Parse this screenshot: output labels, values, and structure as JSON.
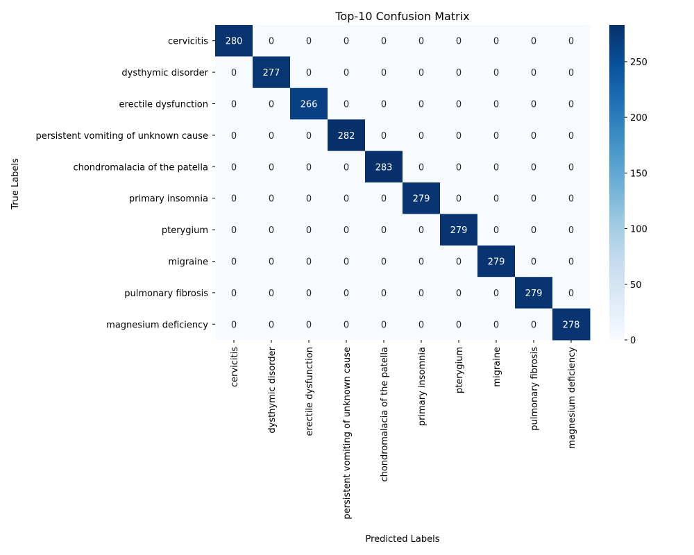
{
  "chart_data": {
    "type": "heatmap",
    "title": "Top-10 Confusion Matrix",
    "xlabel": "Predicted Labels",
    "ylabel": "True Labels",
    "x_categories": [
      "cervicitis",
      "dysthymic disorder",
      "erectile dysfunction",
      "persistent vomiting of unknown cause",
      "chondromalacia of the patella",
      "primary insomnia",
      "pterygium",
      "migraine",
      "pulmonary fibrosis",
      "magnesium deficiency"
    ],
    "y_categories": [
      "cervicitis",
      "dysthymic disorder",
      "erectile dysfunction",
      "persistent vomiting of unknown cause",
      "chondromalacia of the patella",
      "primary insomnia",
      "pterygium",
      "migraine",
      "pulmonary fibrosis",
      "magnesium deficiency"
    ],
    "values": [
      [
        280,
        0,
        0,
        0,
        0,
        0,
        0,
        0,
        0,
        0
      ],
      [
        0,
        277,
        0,
        0,
        0,
        0,
        0,
        0,
        0,
        0
      ],
      [
        0,
        0,
        266,
        0,
        0,
        0,
        0,
        0,
        0,
        0
      ],
      [
        0,
        0,
        0,
        282,
        0,
        0,
        0,
        0,
        0,
        0
      ],
      [
        0,
        0,
        0,
        0,
        283,
        0,
        0,
        0,
        0,
        0
      ],
      [
        0,
        0,
        0,
        0,
        0,
        279,
        0,
        0,
        0,
        0
      ],
      [
        0,
        0,
        0,
        0,
        0,
        0,
        279,
        0,
        0,
        0
      ],
      [
        0,
        0,
        0,
        0,
        0,
        0,
        0,
        279,
        0,
        0
      ],
      [
        0,
        0,
        0,
        0,
        0,
        0,
        0,
        0,
        279,
        0
      ],
      [
        0,
        0,
        0,
        0,
        0,
        0,
        0,
        0,
        0,
        278
      ]
    ],
    "colormap": "Blues",
    "color_range": [
      0,
      283
    ],
    "colorbar_ticks": [
      0,
      50,
      100,
      150,
      200,
      250
    ]
  }
}
